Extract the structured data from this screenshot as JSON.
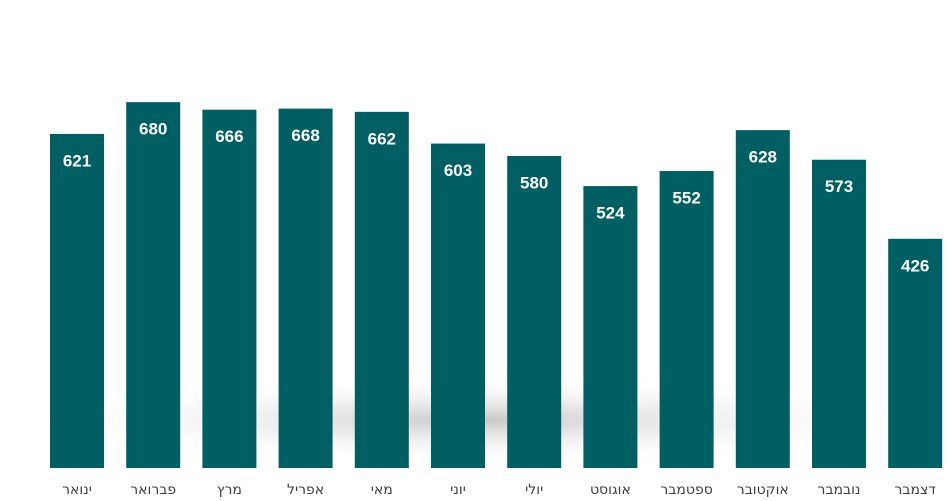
{
  "chart_data": {
    "type": "bar",
    "categories": [
      "ינואר",
      "פברואר",
      "מרץ",
      "אפריל",
      "מאי",
      "יוני",
      "יולי",
      "אוגוסט",
      "ספטמבר",
      "אוקטובר",
      "נובמבר",
      "דצמבר"
    ],
    "values": [
      621,
      680,
      666,
      668,
      662,
      603,
      580,
      524,
      552,
      628,
      573,
      426
    ],
    "color": "#005f63"
  }
}
